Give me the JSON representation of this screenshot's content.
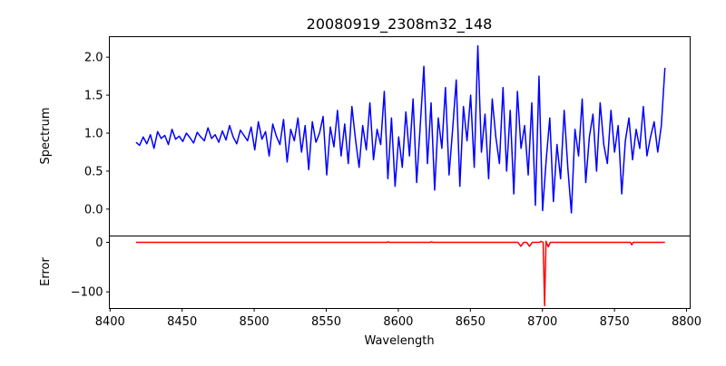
{
  "chart_data": [
    {
      "type": "line",
      "title": "20080919_2308m32_148",
      "xlabel": "",
      "ylabel": "Spectrum",
      "xlim": [
        8399.5,
        8802.5
      ],
      "ylim": [
        -0.354,
        2.27
      ],
      "yticks": [
        0.0,
        0.5,
        1.0,
        1.5,
        2.0
      ],
      "ytick_labels": [
        "0.0",
        "0.5",
        "1.0",
        "1.5",
        "2.0"
      ],
      "grid": false,
      "color": "#0000ff",
      "x_start": 8418,
      "x_end": 8785,
      "values": [
        0.88,
        0.84,
        0.95,
        0.86,
        0.98,
        0.8,
        1.02,
        0.93,
        0.97,
        0.85,
        1.05,
        0.92,
        0.96,
        0.89,
        1.0,
        0.94,
        0.87,
        1.01,
        0.95,
        0.9,
        1.07,
        0.93,
        0.98,
        0.88,
        1.03,
        0.91,
        1.1,
        0.95,
        0.86,
        1.04,
        0.97,
        0.9,
        1.08,
        0.78,
        1.15,
        0.92,
        1.02,
        0.7,
        1.12,
        0.96,
        0.85,
        1.18,
        0.62,
        1.05,
        0.9,
        1.2,
        0.75,
        1.1,
        0.52,
        1.15,
        0.88,
        1.0,
        1.22,
        0.45,
        1.08,
        0.82,
        1.3,
        0.7,
        1.12,
        0.6,
        1.35,
        0.92,
        0.55,
        1.1,
        0.78,
        1.4,
        0.65,
        1.05,
        0.85,
        1.55,
        0.4,
        1.2,
        0.3,
        0.95,
        0.55,
        1.28,
        0.7,
        1.45,
        0.35,
        1.1,
        1.88,
        0.6,
        1.4,
        0.25,
        1.2,
        0.8,
        1.6,
        0.45,
        1.05,
        1.7,
        0.3,
        1.35,
        0.9,
        1.5,
        0.55,
        2.15,
        0.75,
        1.25,
        0.4,
        1.45,
        0.95,
        0.6,
        1.6,
        0.5,
        1.3,
        0.2,
        1.55,
        0.8,
        1.1,
        0.45,
        1.4,
        0.05,
        1.75,
        -0.02,
        0.65,
        1.2,
        0.1,
        0.85,
        0.4,
        1.3,
        0.55,
        -0.05,
        1.05,
        0.7,
        1.45,
        0.35,
        0.95,
        1.25,
        0.5,
        1.4,
        0.85,
        0.6,
        1.3,
        0.75,
        1.1,
        0.2,
        0.9,
        1.2,
        0.65,
        1.05,
        0.8,
        1.35,
        0.7,
        0.95,
        1.15,
        0.75,
        1.1,
        1.86
      ]
    },
    {
      "type": "line",
      "title": "",
      "xlabel": "Wavelength",
      "ylabel": "Error",
      "xlim": [
        8399.5,
        8802.5
      ],
      "ylim": [
        -133.5,
        12.8
      ],
      "xticks": [
        8400,
        8450,
        8500,
        8550,
        8600,
        8650,
        8700,
        8750,
        8800
      ],
      "xtick_labels": [
        "8400",
        "8450",
        "8500",
        "8550",
        "8600",
        "8650",
        "8700",
        "8750",
        "8800"
      ],
      "yticks": [
        0,
        -100
      ],
      "ytick_labels": [
        "0",
        "−100"
      ],
      "grid": false,
      "color": "#ff0000",
      "points": [
        [
          8418,
          0
        ],
        [
          8592,
          0
        ],
        [
          8593,
          1
        ],
        [
          8594,
          0
        ],
        [
          8622,
          0
        ],
        [
          8623,
          1
        ],
        [
          8624,
          0
        ],
        [
          8683,
          0
        ],
        [
          8685,
          -8
        ],
        [
          8687,
          0
        ],
        [
          8689,
          0
        ],
        [
          8691,
          -8
        ],
        [
          8693,
          0
        ],
        [
          8698,
          0
        ],
        [
          8699,
          2
        ],
        [
          8700.5,
          0
        ],
        [
          8701.5,
          -128
        ],
        [
          8702.5,
          2
        ],
        [
          8704,
          -9
        ],
        [
          8705.5,
          0
        ],
        [
          8761,
          0
        ],
        [
          8762,
          -5
        ],
        [
          8763,
          0
        ],
        [
          8785,
          0
        ]
      ]
    }
  ]
}
